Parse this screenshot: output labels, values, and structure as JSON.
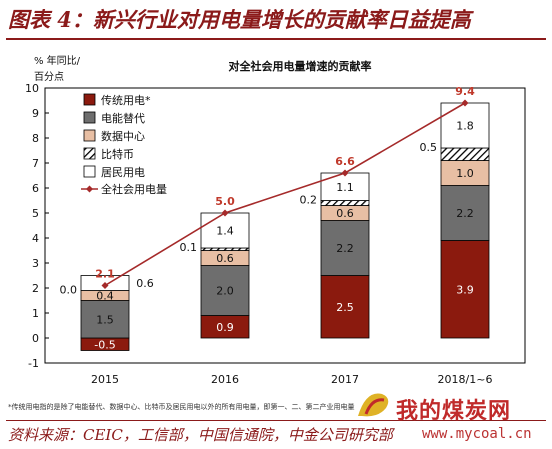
{
  "figure_title": "图表 4：新兴行业对用电量增长的贡献率日益提高",
  "footnote": "*传统用电指的是除了电能替代、数据中心、比特币及居民用电以外的所有用电量，即第一、二、第二产业用电量",
  "source": "资料来源：CEIC，工信部，中国信通院，中金公司研究部",
  "watermark": {
    "text": "我的煤炭网",
    "url": "www.mycoal.cn"
  },
  "colors": {
    "traditional": "#8b1a0e",
    "substitution": "#6e6e6e",
    "datacenter": "#e8bfa4",
    "bitcoin": "hatched",
    "residential": "#ffffff",
    "line": "#a52a2a",
    "accent": "#c0392b"
  },
  "chart_data": {
    "type": "bar",
    "stacked": true,
    "title": "对全社会用电量增速的贡献率",
    "ylabel": "% 年同比/百分点",
    "ylim": [
      -1,
      10
    ],
    "yticks": [
      "-1",
      "0",
      "1",
      "2",
      "3",
      "4",
      "5",
      "6",
      "7",
      "8",
      "9",
      "10"
    ],
    "categories": [
      "2015",
      "2016",
      "2017",
      "2018/1~6"
    ],
    "series": [
      {
        "name": "传统用电*",
        "values": [
          -0.5,
          0.9,
          2.5,
          3.9
        ],
        "labels": [
          "-0.5",
          "0.9",
          "2.5",
          "3.9"
        ]
      },
      {
        "name": "电能替代",
        "values": [
          1.5,
          2.0,
          2.2,
          2.2
        ],
        "labels": [
          "1.5",
          "2.0",
          "2.2",
          "2.2"
        ]
      },
      {
        "name": "数据中心",
        "values": [
          0.4,
          0.6,
          0.6,
          1.0
        ],
        "labels": [
          "0.4",
          "0.6",
          "0.6",
          "1.0"
        ]
      },
      {
        "name": "比特币",
        "values": [
          0.0,
          0.1,
          0.2,
          0.5
        ],
        "labels": [
          "0.0",
          "0.1",
          "0.2",
          "0.5"
        ]
      },
      {
        "name": "居民用电",
        "values": [
          0.6,
          1.4,
          1.1,
          1.8
        ],
        "labels": [
          "0.6",
          "1.4",
          "1.1",
          "1.8"
        ]
      }
    ],
    "line": {
      "name": "全社会用电量",
      "values": [
        2.1,
        5.0,
        6.6,
        9.4
      ],
      "labels": [
        "2.1",
        "5.0",
        "6.6",
        "9.4"
      ]
    },
    "legend": "top-left"
  }
}
